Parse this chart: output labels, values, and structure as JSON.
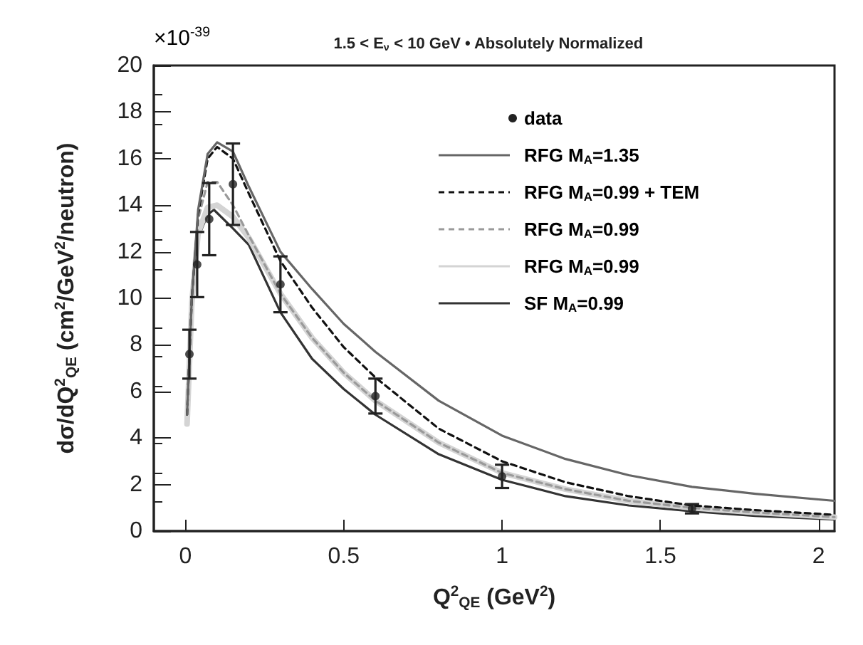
{
  "chart_data": {
    "type": "line",
    "title": "1.5 < E$_{ν}$ < 10 GeV • Absolutely Normalized",
    "xlabel": "Q$^{2}$$_{QE}$ (GeV$^{2}$)",
    "ylabel": "dσ/dQ$^{2}$$_{QE}$ (cm$^{2}$/GeV$^{2}$/neutron)",
    "annotations": [
      "×10$^{-39}$"
    ],
    "xlim": [
      -0.1,
      2.05
    ],
    "xticks": [
      0,
      0.5,
      1,
      1.5,
      2
    ],
    "ylim": [
      0,
      20
    ],
    "yticks": [
      0,
      2,
      4,
      6,
      8,
      10,
      12,
      14,
      16,
      18,
      20
    ],
    "grid": false,
    "legend": "top right",
    "series": [
      {
        "name": "data",
        "type": "scatter",
        "marker": "circle",
        "color": "#222222",
        "x": [
          0.0125,
          0.037,
          0.075,
          0.15,
          0.3,
          0.6,
          1.0,
          1.6
        ],
        "values": [
          7.6,
          11.45,
          13.4,
          14.9,
          10.6,
          5.8,
          2.35,
          0.96
        ],
        "errors": [
          1.05,
          1.4,
          1.55,
          1.75,
          1.2,
          0.75,
          0.5,
          0.2
        ]
      },
      {
        "name": "RFG M$_{A}$=1.35",
        "type": "line",
        "line_style": "solid",
        "marker": "none",
        "color": "#666666",
        "x": [
          0.005,
          0.02,
          0.04,
          0.07,
          0.1,
          0.15,
          0.2,
          0.3,
          0.4,
          0.5,
          0.6,
          0.8,
          1.0,
          1.2,
          1.4,
          1.6,
          1.8,
          2.05
        ],
        "values": [
          5,
          10,
          13.8,
          16.2,
          16.7,
          16.3,
          14.8,
          12.0,
          10.4,
          8.9,
          7.7,
          5.6,
          4.1,
          3.1,
          2.4,
          1.9,
          1.6,
          1.3
        ]
      },
      {
        "name": "RFG M$_{A}$=0.99 + TEM",
        "type": "line",
        "line_style": "dashed",
        "marker": "none",
        "color": "#111111",
        "x": [
          0.005,
          0.02,
          0.04,
          0.07,
          0.1,
          0.15,
          0.2,
          0.3,
          0.4,
          0.5,
          0.6,
          0.8,
          1.0,
          1.2,
          1.4,
          1.6,
          1.8,
          2.05
        ],
        "values": [
          5,
          10,
          13.6,
          16.0,
          16.5,
          16.0,
          14.5,
          11.6,
          9.6,
          7.9,
          6.6,
          4.4,
          3.0,
          2.1,
          1.5,
          1.1,
          0.9,
          0.7
        ]
      },
      {
        "name": "RFG M$_{A}$=0.99",
        "type": "line",
        "line_style": "dashed",
        "marker": "none",
        "color": "#9a9a9a",
        "x": [
          0.005,
          0.02,
          0.04,
          0.07,
          0.1,
          0.15,
          0.2,
          0.3,
          0.4,
          0.5,
          0.6,
          0.8,
          1.0,
          1.2,
          1.4,
          1.6,
          1.8,
          2.05
        ],
        "values": [
          5,
          10,
          13.4,
          15.0,
          15.0,
          14.0,
          12.7,
          10.2,
          8.3,
          6.8,
          5.6,
          3.8,
          2.5,
          1.8,
          1.3,
          1.0,
          0.8,
          0.6
        ]
      },
      {
        "name": "RFG M$_{A}$=0.99",
        "type": "line",
        "line_style": "solid",
        "marker": "none",
        "color": "#d4d4d4",
        "x": [
          0.005,
          0.02,
          0.04,
          0.07,
          0.1,
          0.15,
          0.2,
          0.3,
          0.4,
          0.5,
          0.6,
          0.8,
          1.0,
          1.2,
          1.4,
          1.6,
          1.8,
          2.05
        ],
        "values": [
          4.6,
          9.8,
          12.8,
          13.9,
          14.0,
          13.5,
          12.6,
          10.2,
          8.3,
          6.8,
          5.6,
          3.8,
          2.5,
          1.8,
          1.3,
          1.0,
          0.8,
          0.6
        ]
      },
      {
        "name": "SF M$_{A}$=0.99",
        "type": "line",
        "line_style": "solid",
        "marker": "none",
        "color": "#333333",
        "x": [
          0.005,
          0.02,
          0.04,
          0.07,
          0.09,
          0.15,
          0.2,
          0.3,
          0.4,
          0.5,
          0.6,
          0.8,
          1.0,
          1.2,
          1.4,
          1.6,
          1.8,
          2.05
        ],
        "values": [
          5,
          9.8,
          12.6,
          13.6,
          13.8,
          13.0,
          12.3,
          9.4,
          7.4,
          6.1,
          5.0,
          3.3,
          2.2,
          1.5,
          1.1,
          0.85,
          0.65,
          0.5
        ]
      }
    ]
  }
}
